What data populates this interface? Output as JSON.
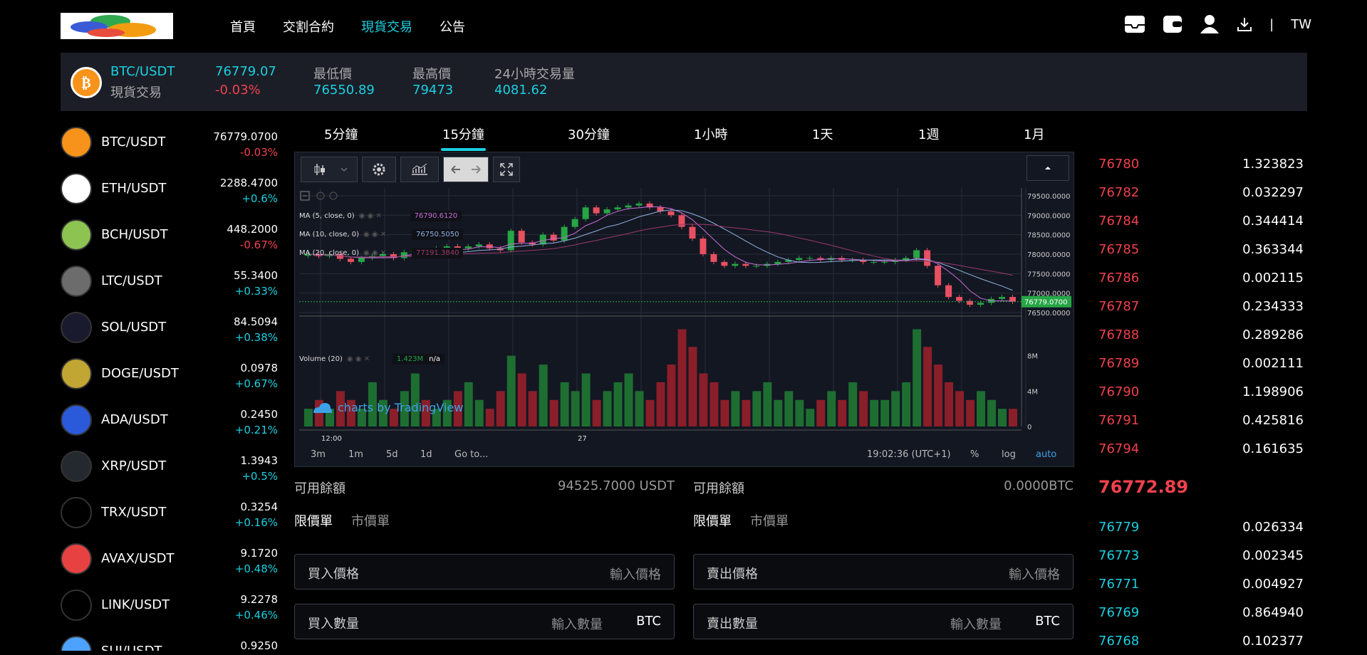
{
  "nav": {
    "items": [
      {
        "label": "首頁",
        "active": false
      },
      {
        "label": "交割合約",
        "active": false
      },
      {
        "label": "現貨交易",
        "active": true
      },
      {
        "label": "公告",
        "active": false
      }
    ],
    "lang": "TW",
    "separator": "|"
  },
  "ticker": {
    "pair": "BTC/USDT",
    "type": "現貨交易",
    "price": "76779.07",
    "change": "-0.03%",
    "low_label": "最低價",
    "low": "76550.89",
    "high_label": "最高價",
    "high": "79473",
    "vol_label": "24小時交易量",
    "vol": "4081.62"
  },
  "markets": [
    {
      "pair": "BTC/USDT",
      "price": "76779.0700",
      "change": "-0.03%",
      "dir": "down",
      "color": "#f7931a",
      "icon": "bitcoin-icon"
    },
    {
      "pair": "ETH/USDT",
      "price": "2288.4700",
      "change": "+0.6%",
      "dir": "up",
      "color": "#ffffff",
      "icon": "ethereum-icon"
    },
    {
      "pair": "BCH/USDT",
      "price": "448.2000",
      "change": "-0.67%",
      "dir": "down",
      "color": "#8dc351",
      "icon": "bitcoin-cash-icon"
    },
    {
      "pair": "LTC/USDT",
      "price": "55.3400",
      "change": "+0.33%",
      "dir": "up",
      "color": "#6c6c6c",
      "icon": "litecoin-icon"
    },
    {
      "pair": "SOL/USDT",
      "price": "84.5094",
      "change": "+0.38%",
      "dir": "up",
      "color": "#1a1a2e",
      "icon": "solana-icon"
    },
    {
      "pair": "DOGE/USDT",
      "price": "0.0978",
      "change": "+0.67%",
      "dir": "up",
      "color": "#c2a633",
      "icon": "dogecoin-icon"
    },
    {
      "pair": "ADA/USDT",
      "price": "0.2450",
      "change": "+0.21%",
      "dir": "up",
      "color": "#2a5ada",
      "icon": "cardano-icon"
    },
    {
      "pair": "XRP/USDT",
      "price": "1.3943",
      "change": "+0.5%",
      "dir": "up",
      "color": "#23292f",
      "icon": "xrp-icon"
    },
    {
      "pair": "TRX/USDT",
      "price": "0.3254",
      "change": "+0.16%",
      "dir": "up",
      "color": "#000000",
      "icon": "tron-icon"
    },
    {
      "pair": "AVAX/USDT",
      "price": "9.1720",
      "change": "+0.48%",
      "dir": "up",
      "color": "#e84142",
      "icon": "avalanche-icon"
    },
    {
      "pair": "LINK/USDT",
      "price": "9.2278",
      "change": "+0.46%",
      "dir": "up",
      "color": "#000000",
      "icon": "chainlink-icon"
    },
    {
      "pair": "SUI/USDT",
      "price": "0.9250",
      "change": "",
      "dir": "up",
      "color": "#4da2ff",
      "icon": "sui-icon"
    }
  ],
  "timeframes": [
    {
      "label": "5分鐘",
      "active": false
    },
    {
      "label": "15分鐘",
      "active": true
    },
    {
      "label": "30分鐘",
      "active": false
    },
    {
      "label": "1小時",
      "active": false
    },
    {
      "label": "1天",
      "active": false
    },
    {
      "label": "1週",
      "active": false
    },
    {
      "label": "1月",
      "active": false
    }
  ],
  "chart": {
    "ma5": "MA (5, close, 0)",
    "ma5_val": "76790.6120",
    "ma10": "MA (10, close, 0)",
    "ma10_val": "76750.5050",
    "ma20": "MA (20, close, 0)",
    "ma20_val": "77191.3840",
    "volume": "Volume (20)",
    "volume_val": "1.423M",
    "volume_na": "n/a",
    "tv": "charts by TradingView",
    "price_ticks": [
      "79500.0000",
      "79000.0000",
      "78500.0000",
      "78000.0000",
      "77500.0000",
      "77000.0000",
      "76500.0000"
    ],
    "last_label": "76779.0700",
    "vol_ticks": [
      "8M",
      "4M",
      "0"
    ],
    "time_ticks": [
      "12:00",
      "27"
    ],
    "ranges": [
      "3m",
      "1m",
      "5d",
      "1d",
      "Go to..."
    ],
    "clock": "19:02:36 (UTC+1)",
    "opt_pct": "%",
    "opt_log": "log",
    "opt_auto": "auto"
  },
  "chart_data": {
    "type": "line",
    "price_range": [
      76500,
      79700
    ],
    "close": [
      78000,
      77950,
      78000,
      77880,
      77800,
      77900,
      77950,
      78000,
      77900,
      78050,
      78100,
      77950,
      78150,
      78200,
      78150,
      78200,
      78250,
      78150,
      78100,
      78600,
      78300,
      78250,
      78500,
      78350,
      78700,
      78900,
      79200,
      79050,
      79150,
      79200,
      79250,
      79300,
      79200,
      79100,
      79000,
      78700,
      78400,
      78000,
      77800,
      77700,
      77750,
      77700,
      77700,
      77750,
      77800,
      77850,
      77900,
      77900,
      77850,
      77900,
      77850,
      77850,
      77800,
      77800,
      77800,
      77850,
      77900,
      78100,
      77700,
      77200,
      76900,
      76800,
      76700,
      76750,
      76850,
      76900,
      76779
    ],
    "volume_range": [
      0,
      12
    ],
    "volume": [
      2,
      3,
      2,
      4,
      3,
      2,
      5,
      3,
      2,
      4,
      6,
      3,
      2,
      3,
      4,
      5,
      3,
      2,
      4,
      8,
      6,
      4,
      7,
      3,
      5,
      4,
      6,
      3,
      4,
      5,
      6,
      4,
      3,
      5,
      7,
      11,
      9,
      6,
      5,
      3,
      4,
      3,
      4,
      5,
      3,
      4,
      3,
      2,
      3,
      4,
      3,
      5,
      4,
      3,
      3,
      4,
      5,
      11,
      9,
      7,
      5,
      4,
      3,
      4,
      3,
      2,
      2
    ]
  },
  "asks": [
    {
      "p": "76780",
      "q": "1.323823"
    },
    {
      "p": "76782",
      "q": "0.032297"
    },
    {
      "p": "76784",
      "q": "0.344414"
    },
    {
      "p": "76785",
      "q": "0.363344"
    },
    {
      "p": "76786",
      "q": "0.002115"
    },
    {
      "p": "76787",
      "q": "0.234333"
    },
    {
      "p": "76788",
      "q": "0.289286"
    },
    {
      "p": "76789",
      "q": "0.002111"
    },
    {
      "p": "76790",
      "q": "1.198906"
    },
    {
      "p": "76791",
      "q": "0.425816"
    },
    {
      "p": "76794",
      "q": "0.161635"
    }
  ],
  "last_price": "76772.89",
  "bids": [
    {
      "p": "76779",
      "q": "0.026334"
    },
    {
      "p": "76773",
      "q": "0.002345"
    },
    {
      "p": "76771",
      "q": "0.004927"
    },
    {
      "p": "76769",
      "q": "0.864940"
    },
    {
      "p": "76768",
      "q": "0.102377"
    }
  ],
  "buy": {
    "avail_label": "可用餘額",
    "avail": "94525.7000 USDT",
    "limit": "限價單",
    "market": "市價單",
    "price_label": "買入價格",
    "price_ph": "輸入價格",
    "qty_label": "買入數量",
    "qty_ph": "輸入數量",
    "unit": "BTC"
  },
  "sell": {
    "avail_label": "可用餘額",
    "avail": "0.0000BTC",
    "limit": "限價單",
    "market": "市價單",
    "price_label": "賣出價格",
    "price_ph": "輸入價格",
    "qty_label": "賣出數量",
    "qty_ph": "輸入數量",
    "unit": "BTC"
  }
}
